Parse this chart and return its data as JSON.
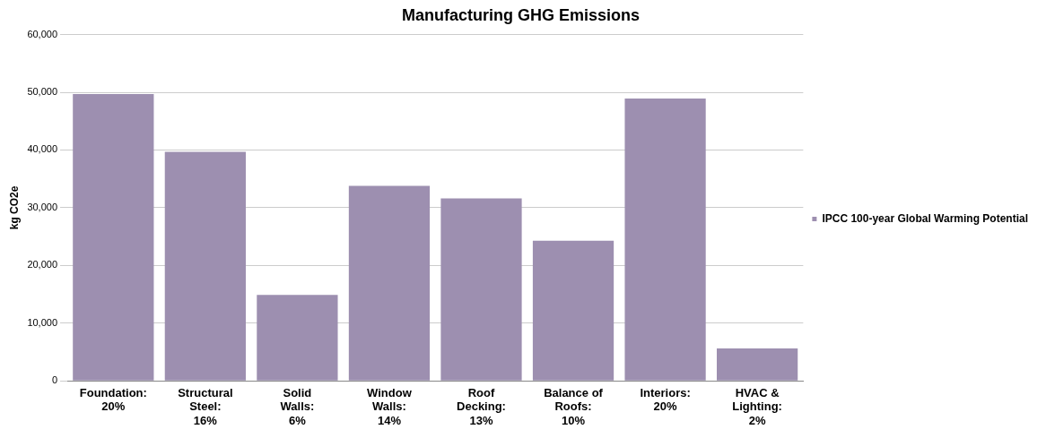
{
  "chart_data": {
    "type": "bar",
    "title": "Manufacturing GHG Emissions",
    "ylabel": "kg CO2e",
    "categories": [
      "Foundation:\n20%",
      "Structural\nSteel:\n16%",
      "Solid\nWalls:\n6%",
      "Window\nWalls:\n14%",
      "Roof\nDecking:\n13%",
      "Balance of\nRoofs:\n10%",
      "Interiors:\n20%",
      "HVAC &\nLighting:\n2%"
    ],
    "series": [
      {
        "name": "IPCC 100-year Global Warming Potential",
        "color": "#9d8fb0",
        "values": [
          49700,
          39700,
          14900,
          33800,
          31600,
          24300,
          48900,
          5600
        ]
      }
    ],
    "ylim": [
      0,
      60000
    ],
    "yticks": [
      {
        "value": 0,
        "label": "0"
      },
      {
        "value": 10000,
        "label": "10,000"
      },
      {
        "value": 20000,
        "label": "20,000"
      },
      {
        "value": 30000,
        "label": "30,000"
      },
      {
        "value": 40000,
        "label": "40,000"
      },
      {
        "value": 50000,
        "label": "50,000"
      },
      {
        "value": 60000,
        "label": "60,000"
      }
    ],
    "grid": "y",
    "legend": "right"
  }
}
